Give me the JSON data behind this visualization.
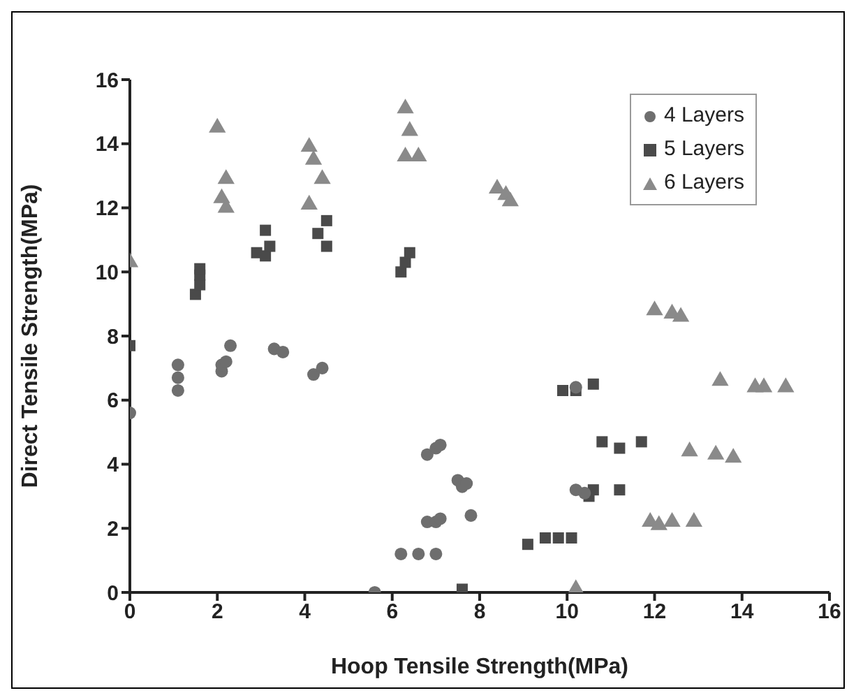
{
  "chart_data": {
    "type": "scatter",
    "xlabel": "Hoop Tensile Strength(MPa)",
    "ylabel": "Direct Tensile Strength(MPa)",
    "xlim": [
      0,
      16
    ],
    "ylim": [
      0,
      16
    ],
    "xticks": [
      0,
      2,
      4,
      6,
      8,
      10,
      12,
      14,
      16
    ],
    "yticks": [
      0,
      2,
      4,
      6,
      8,
      10,
      12,
      14,
      16
    ],
    "grid": false,
    "legend": "top right",
    "series": [
      {
        "name": "4 Layers",
        "color": "#6e6e6e",
        "marker": "circle",
        "x": [
          0,
          1.1,
          1.1,
          1.1,
          2.1,
          2.1,
          2.2,
          2.3,
          3.3,
          3.5,
          4.2,
          4.4,
          5.6,
          6.2,
          6.6,
          6.8,
          7.0,
          7.1,
          6.8,
          7.0,
          7.1,
          7.0,
          7.5,
          7.6,
          7.8,
          7.7,
          10.4,
          10.2,
          10.2
        ],
        "values": [
          5.6,
          7.1,
          6.7,
          6.3,
          6.9,
          7.1,
          7.2,
          7.7,
          7.6,
          7.5,
          6.8,
          7.0,
          0,
          1.2,
          1.2,
          4.3,
          4.5,
          4.6,
          2.2,
          2.2,
          2.3,
          1.2,
          3.5,
          3.3,
          2.4,
          3.4,
          3.1,
          3.2,
          6.4
        ]
      },
      {
        "name": "5 Layers",
        "color": "#4a4a4a",
        "marker": "square",
        "x": [
          0,
          1.5,
          1.6,
          1.6,
          1.6,
          2.9,
          3.1,
          3.1,
          3.2,
          4.3,
          4.5,
          4.5,
          6.2,
          6.3,
          6.4,
          7.6,
          9.1,
          9.5,
          9.8,
          10.1,
          9.9,
          10.2,
          10.6,
          10.5,
          10.6,
          10.8,
          11.2,
          11.7,
          11.2
        ],
        "values": [
          7.7,
          9.3,
          9.6,
          9.9,
          10.1,
          10.6,
          10.5,
          11.3,
          10.8,
          11.2,
          11.6,
          10.8,
          10.0,
          10.3,
          10.6,
          0.1,
          1.5,
          1.7,
          1.7,
          1.7,
          6.3,
          6.3,
          6.5,
          3.0,
          3.2,
          4.7,
          4.5,
          4.7,
          3.2
        ]
      },
      {
        "name": "6 Layers",
        "color": "#8a8a8a",
        "marker": "triangle",
        "x": [
          0,
          2.0,
          2.1,
          2.2,
          2.2,
          4.1,
          4.2,
          4.4,
          4.1,
          6.3,
          6.4,
          6.3,
          6.6,
          8.4,
          8.6,
          8.7,
          10.2,
          11.9,
          12.1,
          12.4,
          12.9,
          12.0,
          12.4,
          12.6,
          12.8,
          13.4,
          13.8,
          13.5,
          14.3,
          14.5,
          15.0
        ],
        "values": [
          10.3,
          14.5,
          12.3,
          12.0,
          12.9,
          13.9,
          13.5,
          12.9,
          12.1,
          15.1,
          14.4,
          13.6,
          13.6,
          12.6,
          12.4,
          12.2,
          0.1,
          2.2,
          2.1,
          2.2,
          2.2,
          8.8,
          8.7,
          8.6,
          4.4,
          4.3,
          4.2,
          6.6,
          6.4,
          6.4,
          6.4
        ]
      }
    ]
  }
}
